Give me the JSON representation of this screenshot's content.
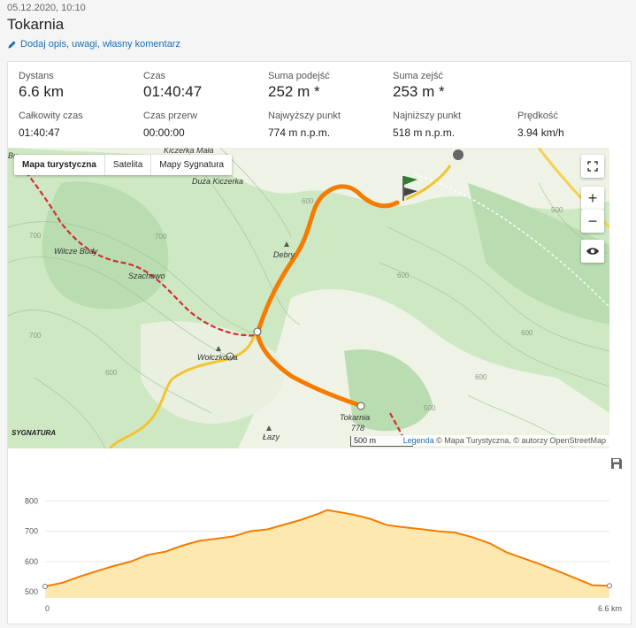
{
  "header": {
    "datetime": "05.12.2020, 10:10",
    "title": "Tokarnia",
    "edit_link": "Dodaj opis, uwagi, własny komentarz"
  },
  "stats": {
    "distance": {
      "label": "Dystans",
      "value": "6.6 km"
    },
    "time": {
      "label": "Czas",
      "value": "01:40:47"
    },
    "ascent": {
      "label": "Suma podejść",
      "value": "252 m *"
    },
    "descent": {
      "label": "Suma zejść",
      "value": "253 m *"
    },
    "total_time": {
      "label": "Całkowity czas",
      "value": "01:40:47"
    },
    "pause_time": {
      "label": "Czas przerw",
      "value": "00:00:00"
    },
    "highest": {
      "label": "Najwyższy punkt",
      "value": "774 m n.p.m."
    },
    "lowest": {
      "label": "Najniższy punkt",
      "value": "518 m n.p.m."
    },
    "speed": {
      "label": "Prędkość",
      "value": "3.94 km/h"
    }
  },
  "map": {
    "layers": [
      "Mapa turystyczna",
      "Satelita",
      "Mapy Sygnatura"
    ],
    "active_layer": "Mapa turystyczna",
    "zoom_in": "+",
    "zoom_out": "−",
    "scale": "500 m",
    "legend_link": "Legenda",
    "attribution": "© Mapa Turystyczna, © autorzy OpenStreetMap",
    "brand": "SYGNATURA",
    "places": {
      "kiczerka_mala": "Kiczerka Mała",
      "duza_kiczerka": "Duża Kiczerka",
      "wilcze_budy": "Wilcze Budy",
      "szachowo": "Szachowo",
      "debry": "Debry",
      "wolczkowa": "Wołczkowa",
      "tokarnia": "Tokarnia",
      "tokarnia_alt": "778",
      "lazy": "Łazy",
      "bu": "Bu"
    },
    "contours": [
      "700",
      "700",
      "600",
      "600",
      "500",
      "700",
      "600",
      "500",
      "600",
      "600"
    ],
    "colors": {
      "track": "#f57c00",
      "red_trail": "#d32f2f",
      "yellow_trail": "#f4c430"
    }
  },
  "chart_data": {
    "type": "area",
    "xlabel": "",
    "ylabel": "",
    "x_ticks": [
      "0",
      "6.6 km"
    ],
    "y_ticks": [
      500,
      600,
      700,
      800
    ],
    "ylim": [
      480,
      830
    ],
    "xlim": [
      0,
      6.6
    ],
    "x": [
      0,
      0.2,
      0.4,
      0.6,
      0.8,
      1.0,
      1.2,
      1.4,
      1.6,
      1.8,
      2.0,
      2.2,
      2.4,
      2.6,
      2.8,
      3.0,
      3.2,
      3.3,
      3.4,
      3.6,
      3.8,
      4.0,
      4.2,
      4.4,
      4.6,
      4.8,
      5.0,
      5.2,
      5.4,
      5.6,
      5.8,
      6.0,
      6.2,
      6.4,
      6.6
    ],
    "y": [
      518,
      530,
      550,
      568,
      585,
      600,
      622,
      632,
      652,
      668,
      675,
      683,
      700,
      706,
      722,
      738,
      758,
      770,
      765,
      755,
      741,
      720,
      713,
      707,
      700,
      695,
      680,
      660,
      630,
      610,
      590,
      568,
      545,
      522,
      520
    ],
    "colors": {
      "line": "#f57c00",
      "fill": "#fde9b0"
    },
    "save_icon": "save-icon"
  }
}
